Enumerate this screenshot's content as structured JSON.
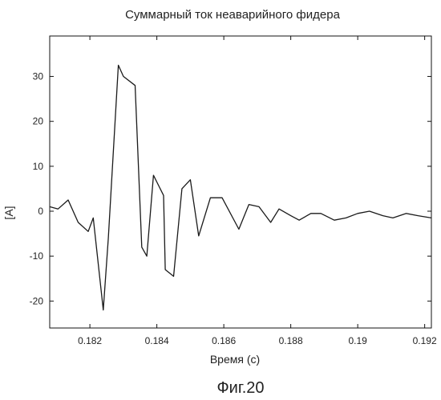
{
  "chart_data": {
    "type": "line",
    "title": "Суммарный ток неаварийного фидера",
    "xlabel": "Время (с)",
    "ylabel": "[A]",
    "xlim": [
      0.1808,
      0.1922
    ],
    "ylim": [
      -26,
      39
    ],
    "x_ticks": [
      {
        "value": 0.182,
        "label": "0.182"
      },
      {
        "value": 0.184,
        "label": "0.184"
      },
      {
        "value": 0.186,
        "label": "0.186"
      },
      {
        "value": 0.188,
        "label": "0.188"
      },
      {
        "value": 0.19,
        "label": "0.19"
      },
      {
        "value": 0.192,
        "label": "0.192"
      }
    ],
    "y_ticks": [
      {
        "value": 30,
        "label": "30"
      },
      {
        "value": 20,
        "label": "20"
      },
      {
        "value": 10,
        "label": "10"
      },
      {
        "value": 0,
        "label": "0"
      },
      {
        "value": -10,
        "label": "-10"
      },
      {
        "value": -20,
        "label": "-20"
      }
    ],
    "grid": false,
    "legend": "none",
    "line_color": "#1a1a1a",
    "series": [
      {
        "x": [
          0.1808,
          0.18105,
          0.18135,
          0.18165,
          0.18195,
          0.1821,
          0.1824,
          0.18255,
          0.18285,
          0.183,
          0.18335,
          0.18355,
          0.1837,
          0.1839,
          0.184,
          0.1842,
          0.18425,
          0.1845,
          0.18475,
          0.185,
          0.18525,
          0.1856,
          0.18595,
          0.18645,
          0.18675,
          0.18705,
          0.1874,
          0.18765,
          0.188,
          0.18825,
          0.1886,
          0.1889,
          0.1893,
          0.18965,
          0.19,
          0.19035,
          0.19075,
          0.19105,
          0.19145,
          0.1918,
          0.1922
        ],
        "y": [
          1,
          0.5,
          2.5,
          -2.5,
          -4.5,
          -1.5,
          -22,
          -6,
          32.5,
          30,
          28,
          -8,
          -10,
          8,
          6.5,
          3.5,
          -13,
          -14.5,
          5,
          7,
          -5.5,
          3,
          3,
          -4,
          1.5,
          1,
          -2.5,
          0.5,
          -1,
          -2,
          -0.5,
          -0.5,
          -2,
          -1.5,
          -0.5,
          0,
          -1,
          -1.5,
          -0.5,
          -1,
          -1.5
        ]
      }
    ]
  },
  "figure": {
    "caption": "Фиг.20"
  }
}
